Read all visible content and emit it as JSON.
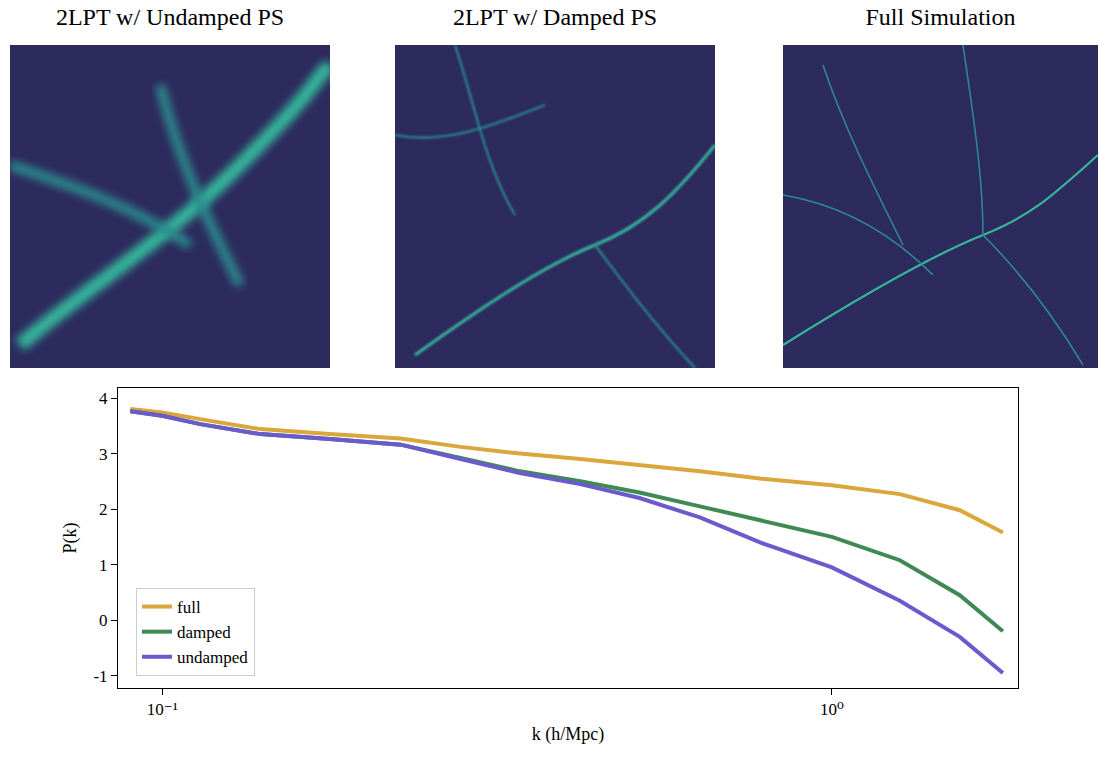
{
  "panels": [
    {
      "title": "2LPT w/ Undamped PS"
    },
    {
      "title": "2LPT w/ Damped PS"
    },
    {
      "title": "Full Simulation"
    }
  ],
  "chart_data": {
    "type": "line",
    "x_label": "k (h/Mpc)",
    "y_label": "P(k)",
    "log": "x",
    "xlim": [
      0.0859,
      1.896
    ],
    "xticks": [
      {
        "value": 0.1,
        "label": "10⁻¹"
      },
      {
        "value": 1,
        "label": "10⁰"
      }
    ],
    "ylim": [
      -1.22,
      4.18
    ],
    "yticks": [
      -1,
      0,
      1,
      2,
      3,
      4
    ],
    "grid": false,
    "legend": "lower left",
    "x": [
      0.0896,
      0.1,
      0.114,
      0.14,
      0.178,
      0.227,
      0.279,
      0.342,
      0.421,
      0.516,
      0.635,
      0.781,
      1.0,
      1.263,
      1.552,
      1.8
    ],
    "series": [
      {
        "name": "full",
        "color": "#d9a73b",
        "values": [
          3.8,
          3.74,
          3.62,
          3.44,
          3.35,
          3.27,
          3.12,
          3.0,
          2.9,
          2.8,
          2.68,
          2.55,
          2.43,
          2.27,
          1.98,
          1.58
        ]
      },
      {
        "name": "damped",
        "color": "#3f8a54",
        "values": [
          3.76,
          3.68,
          3.53,
          3.35,
          3.26,
          3.16,
          2.92,
          2.68,
          2.5,
          2.3,
          2.05,
          1.8,
          1.5,
          1.08,
          0.45,
          -0.2
        ]
      },
      {
        "name": "undamped",
        "color": "#6a5acd",
        "values": [
          3.76,
          3.68,
          3.53,
          3.35,
          3.26,
          3.16,
          2.9,
          2.65,
          2.45,
          2.2,
          1.85,
          1.4,
          0.95,
          0.35,
          -0.3,
          -0.95
        ]
      }
    ]
  }
}
